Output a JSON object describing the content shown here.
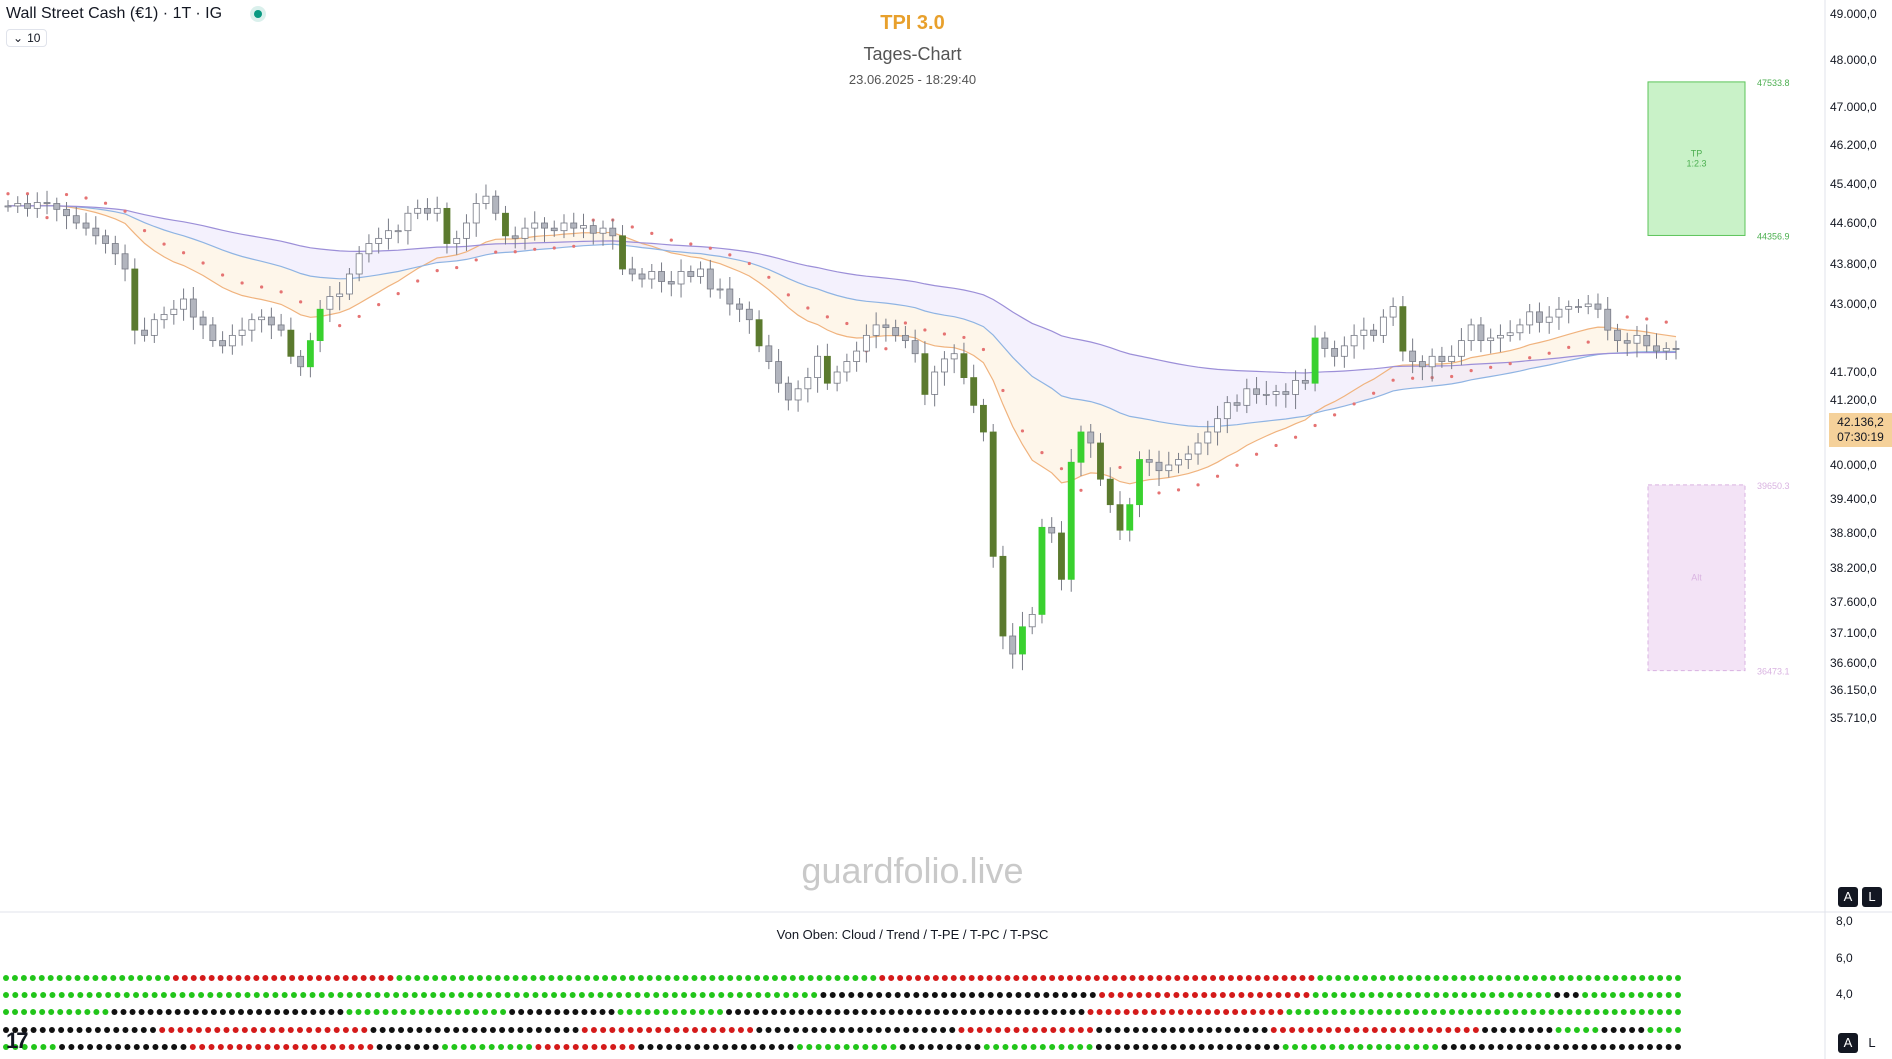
{
  "symbol": {
    "name": "Wall Street Cash (€1) · 1T · IG",
    "indicator_count": "10",
    "live_color": "#089981"
  },
  "title": {
    "main": "TPI 3.0",
    "sub": "Tages-Chart",
    "date": "23.06.2025 - 18:29:40",
    "main_color": "#e8a02c"
  },
  "watermark": "guardfolio.live",
  "oscillator": {
    "label": "Von Oben: Cloud / Trend / T-PE / T-PC / T-PSC"
  },
  "price_tag": {
    "price": "42.136,2",
    "time": "07:30:19",
    "color": "#f5d19a"
  },
  "buttons": {
    "a_label": "A",
    "l_label": "L"
  },
  "logo": "17",
  "chart_data": [
    {
      "type": "candlestick",
      "ylim": [
        35600,
        49000
      ],
      "y_ticks": [
        "49.000,0",
        "48.000,0",
        "47.000,0",
        "46.200,0",
        "45.400,0",
        "44.600,0",
        "43.800,0",
        "43.000,0",
        "41.700,0",
        "41.200,0",
        "40.600,0",
        "40.000,0",
        "39.400,0",
        "38.800,0",
        "38.200,0",
        "37.600,0",
        "37.100,0",
        "36.600,0",
        "36.150,0",
        "35.710,0"
      ],
      "y_tick_values": [
        49000,
        48000,
        47000,
        46200,
        45400,
        44600,
        43800,
        43000,
        41700,
        41200,
        40600,
        40000,
        39400,
        38800,
        38200,
        37600,
        37100,
        36600,
        36150,
        35710
      ],
      "colors": {
        "up_hollow": "#ffffff",
        "candle_edge": "#787b86",
        "down_gray": "#b2b5be",
        "bull_highlight": "#39d12f",
        "bear_highlight": "#5b7a2e",
        "sar": "#e57373",
        "ema_orange": "#f0b37e",
        "ema_blue": "#8fb4e3",
        "ema_purple": "#9c8fd8"
      },
      "ohlc_closes": [
        44950,
        45000,
        44900,
        45020,
        45000,
        44880,
        44750,
        44600,
        44500,
        44350,
        44200,
        44000,
        43700,
        42500,
        42400,
        42700,
        42800,
        42900,
        43100,
        42750,
        42600,
        42300,
        42200,
        42400,
        42500,
        42700,
        42750,
        42600,
        42500,
        42000,
        41800,
        42300,
        42900,
        43150,
        43200,
        43600,
        44000,
        44200,
        44300,
        44450,
        44450,
        44800,
        44900,
        44800,
        44900,
        44200,
        44300,
        44600,
        45000,
        45150,
        44800,
        44350,
        44300,
        44500,
        44600,
        44500,
        44450,
        44600,
        44500,
        44550,
        44400,
        44500,
        44350,
        43700,
        43600,
        43500,
        43650,
        43450,
        43400,
        43650,
        43550,
        43700,
        43300,
        43300,
        43000,
        42900,
        42700,
        42200,
        41900,
        41500,
        41200,
        41400,
        41600,
        42000,
        41500,
        41700,
        41900,
        42100,
        42400,
        42600,
        42550,
        42400,
        42300,
        42050,
        41300,
        41700,
        41950,
        42050,
        41600,
        41100,
        40600,
        38400,
        37050,
        36750,
        37200,
        37400,
        38900,
        38800,
        38000,
        40050,
        40600,
        40400,
        39750,
        39300,
        38850,
        39300,
        40100,
        40050,
        39900,
        40000,
        40100,
        40200,
        40400,
        40600,
        40850,
        41150,
        41100,
        41400,
        41300,
        41300,
        41350,
        41300,
        41550,
        41500,
        42350,
        42150,
        42000,
        42200,
        42400,
        42500,
        42400,
        42750,
        42950,
        42100,
        41900,
        41800,
        42000,
        41900,
        42000,
        42300,
        42600,
        42300,
        42350,
        42400,
        42450,
        42600,
        42850,
        42650,
        42750,
        42900,
        42950,
        42950,
        43000,
        42900,
        42500,
        42300,
        42250,
        42400,
        42200,
        42100,
        42150,
        42136
      ]
    },
    {
      "type": "dot-matrix",
      "ylim": [
        0,
        8
      ],
      "y_ticks": [
        "8,0",
        "6,0",
        "4,0"
      ],
      "y_tick_values": [
        8,
        6,
        4
      ],
      "rows": [
        "Cloud",
        "Trend",
        "T-PE",
        "T-PC",
        "T-PSC"
      ],
      "colors": {
        "g": "#22c51a",
        "r": "#d41a1a",
        "k": "#111111"
      },
      "grid": [
        "gggggggggggggggggggrrrrrrrrrrrrrrrrrrrrrrrrrggggggggggggggggggggggggggggggggggggggggggggggggggggggrrrrrrrrrrrrrrrrrrrrrrrrrrrrrrrrrrrrrrrrrrrrrrrrrggggggggggggggggggggggggggggggggggggggggg",
        "ggggggggggggggggggggggggggggggggggggggggggggggggggggggggggggggggggggggggggggggggggggggggkkkkkkkkkkkkkkkkkkkkkkkkkkkkkkrrrrrrrrrrrrrrrrrrrrrrrggggggggggggggggggggggggggkkkggggggggggg",
        "ggggggggggggkkkkkkkkkkkkkkkkkkkkkkkkkkggggggggggggggggggkkkkkkkkkkkkggggggggggggkkkkkkkkkkkkkkkkkkkkkkkkkkkkkkkkkkkkkkkkrrrrrrrrrrrrrrrrrrrrrrgggggggggggggggggggggggggggggggggggggggggggg",
        "kkkkkkkkkkkkkkkkkrrrrrrrrrrrrrrrrrrrrrrrkkkkkkkkkkkkkkkkkkkkkkkrrrrrrrrrrrrrrrrrrrkkkkkkkkkkkkkkkkkkkkkkrrrrrrrrrrrrrrrkkkkkkkkkkkkkkkkkkkrrrrrrrrrrrrrrrrrrrrrrrkkkkkkkkgggggkkkkkgggg",
        "ggggggkkkkkkkkkkkkkkrrrrrrrrrrrrrrrrrrrrkkkkkkkggggggggggrrrrrrrrrrrkkkkkkkkkkkkkkkkkgggggggggggkkkkkkkkkggggggggggggkkkkkkkkkkkkkkkkkkkkgggggggggggggggggkkkkkkkkkkkkkkkkkkkkkkkkkk"
      ]
    }
  ],
  "tp_box": {
    "label": "TP",
    "ratio": "1:2.3",
    "top_value": "47533.8",
    "bottom_value": "44356.9",
    "fill": "#c9f2c8",
    "edge": "#5cc45a",
    "top_price": 47533.8,
    "bottom_price": 44356.9
  },
  "sl_box": {
    "label": "Alt",
    "top_value": "39650.3",
    "bottom_value": "36473.1",
    "fill": "#f3e3f6",
    "edge": "#d9b3e1",
    "top_price": 39650.3,
    "bottom_price": 36473.1
  }
}
